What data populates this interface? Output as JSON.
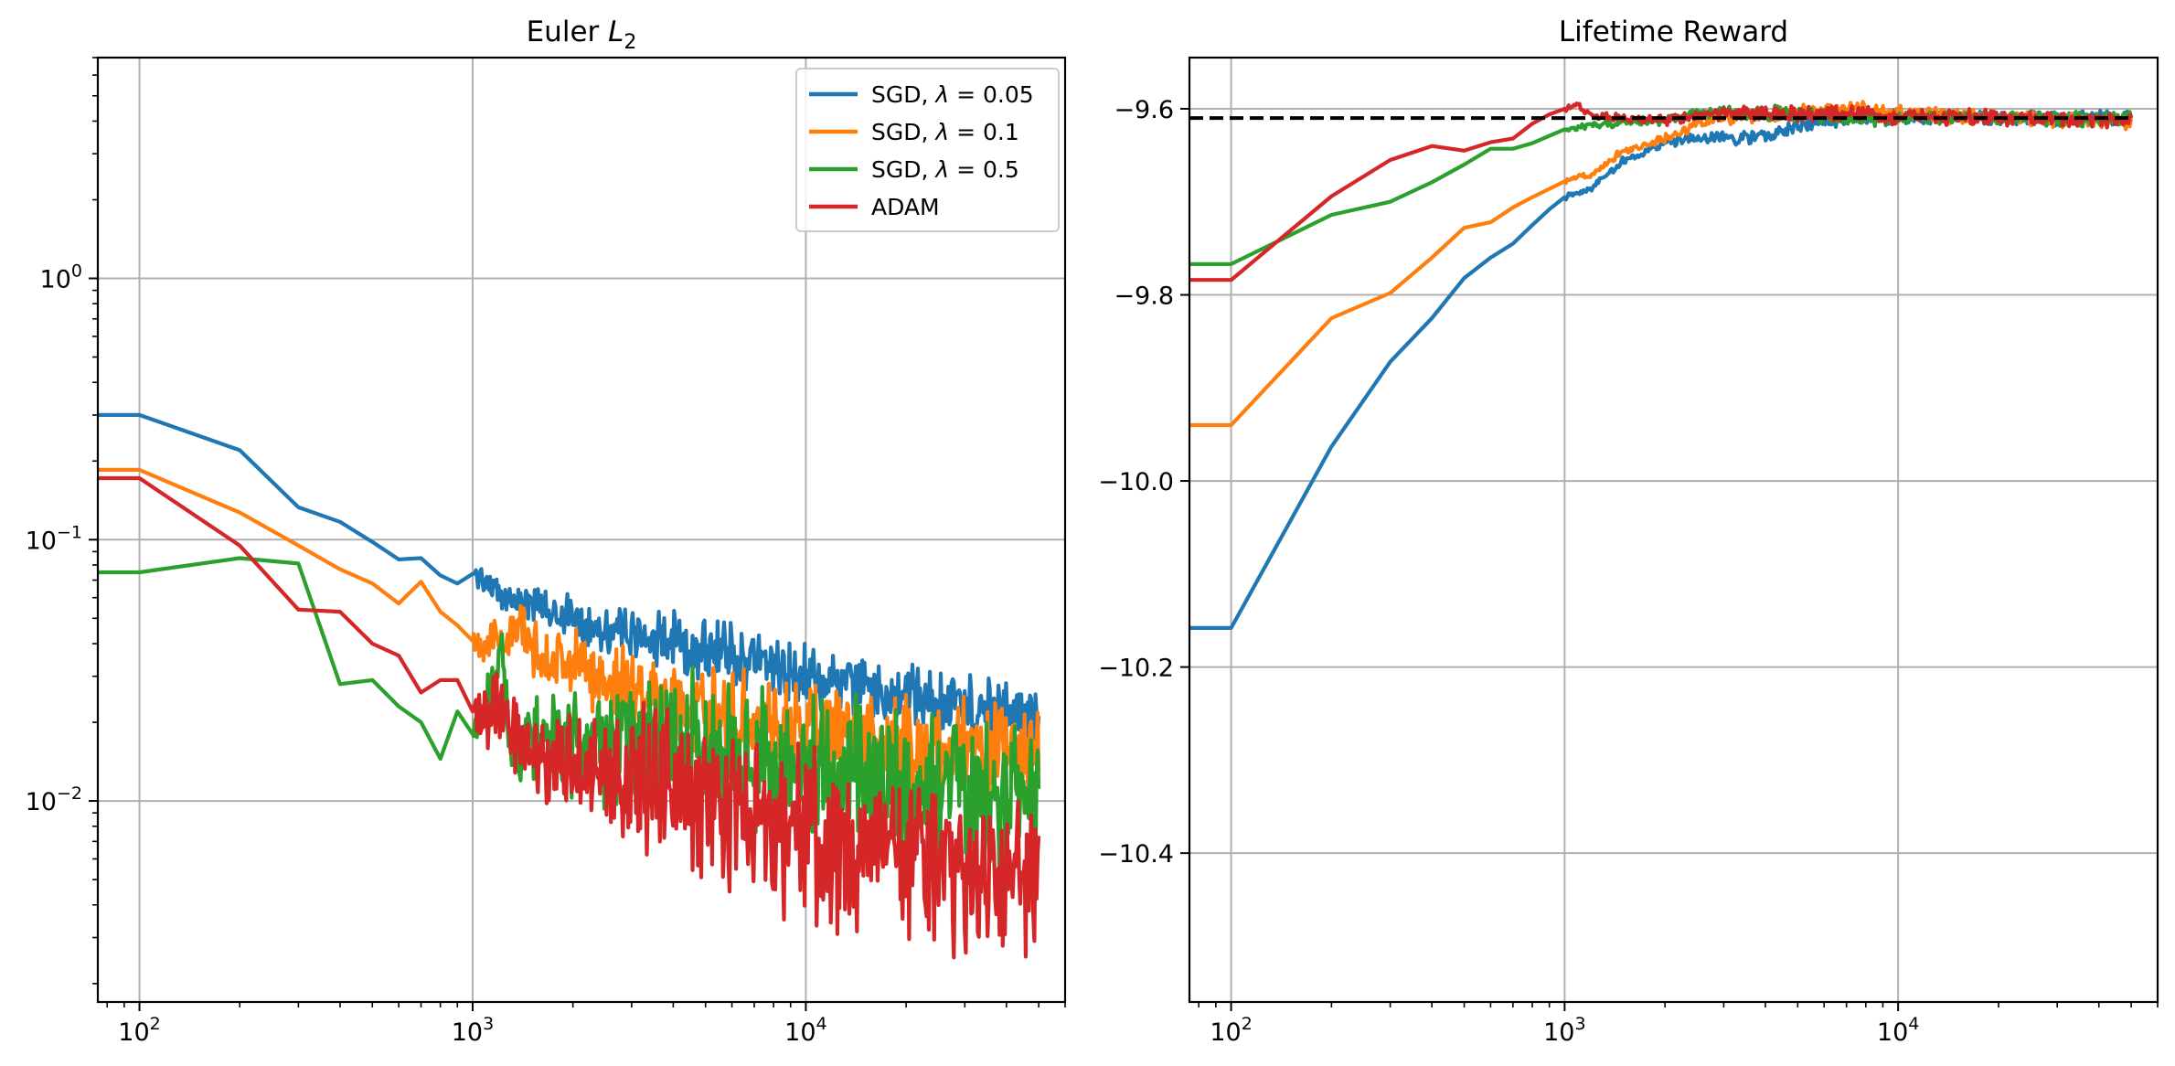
{
  "chart_data": [
    {
      "type": "line",
      "title": "Euler L2",
      "title_base": "Euler ",
      "title_symbol": "L",
      "title_subscript": "2",
      "x_scale": "log",
      "y_scale": "log",
      "xlim": [
        75,
        60000
      ],
      "ylim": [
        0.0017,
        7
      ],
      "x_ticks": [
        {
          "value": 100,
          "base": "10",
          "exp": "2"
        },
        {
          "value": 1000,
          "base": "10",
          "exp": "3"
        },
        {
          "value": 10000,
          "base": "10",
          "exp": "4"
        }
      ],
      "y_ticks": [
        {
          "value": 0.01,
          "base": "10",
          "exp": "−2"
        },
        {
          "value": 0.1,
          "base": "10",
          "exp": "−1"
        },
        {
          "value": 1,
          "base": "10",
          "exp": "0"
        }
      ],
      "grid": true,
      "legend": {
        "position": "top-right",
        "entries": [
          {
            "series": 0,
            "prefix": "SGD, ",
            "symbol": "λ",
            "suffix": " = 0.05"
          },
          {
            "series": 1,
            "prefix": "SGD, ",
            "symbol": "λ",
            "suffix": " = 0.1"
          },
          {
            "series": 2,
            "prefix": "SGD, ",
            "symbol": "λ",
            "suffix": " = 0.5"
          },
          {
            "series": 3,
            "prefix": "ADAM",
            "symbol": "",
            "suffix": ""
          }
        ]
      },
      "series": [
        {
          "name": "SGD, λ = 0.05",
          "color": "#1f77b4",
          "noise": 0.09,
          "x": [
            75,
            100,
            200,
            300,
            400,
            500,
            600,
            700,
            800,
            900,
            1000,
            1100,
            1200,
            1500,
            2000,
            3000,
            5000,
            7000,
            10000,
            15000,
            20000,
            30000,
            50000
          ],
          "y": [
            0.3,
            0.3,
            0.22,
            0.133,
            0.117,
            0.098,
            0.084,
            0.085,
            0.073,
            0.068,
            0.074,
            0.07,
            0.061,
            0.057,
            0.05,
            0.043,
            0.038,
            0.035,
            0.03,
            0.027,
            0.025,
            0.023,
            0.0205
          ]
        },
        {
          "name": "SGD, λ = 0.1",
          "color": "#ff7f0e",
          "noise": 0.14,
          "x": [
            75,
            100,
            200,
            300,
            400,
            500,
            600,
            700,
            800,
            900,
            1000,
            1200,
            1400,
            1500,
            2000,
            3000,
            5000,
            7000,
            10000,
            15000,
            20000,
            30000,
            50000
          ],
          "y": [
            0.185,
            0.185,
            0.127,
            0.095,
            0.077,
            0.068,
            0.057,
            0.069,
            0.053,
            0.047,
            0.041,
            0.041,
            0.046,
            0.038,
            0.033,
            0.027,
            0.022,
            0.02,
            0.018,
            0.017,
            0.016,
            0.0155,
            0.015
          ]
        },
        {
          "name": "SGD, λ = 0.5",
          "color": "#2ca02c",
          "noise": 0.22,
          "x": [
            75,
            100,
            200,
            300,
            400,
            500,
            600,
            700,
            800,
            900,
            1000,
            1100,
            1200,
            1300,
            1400,
            1500,
            2000,
            3000,
            5000,
            7000,
            10000,
            15000,
            20000,
            30000,
            50000
          ],
          "y": [
            0.075,
            0.075,
            0.085,
            0.081,
            0.028,
            0.029,
            0.023,
            0.02,
            0.0145,
            0.022,
            0.018,
            0.023,
            0.042,
            0.016,
            0.017,
            0.018,
            0.016,
            0.016,
            0.015,
            0.014,
            0.013,
            0.012,
            0.0115,
            0.011,
            0.0105
          ]
        },
        {
          "name": "ADAM",
          "color": "#d62728",
          "noise": 0.24,
          "x": [
            75,
            100,
            200,
            300,
            400,
            500,
            600,
            700,
            800,
            900,
            1000,
            1100,
            1200,
            1500,
            2000,
            3000,
            5000,
            7000,
            10000,
            15000,
            20000,
            30000,
            50000
          ],
          "y": [
            0.172,
            0.172,
            0.095,
            0.054,
            0.053,
            0.04,
            0.036,
            0.026,
            0.029,
            0.029,
            0.022,
            0.021,
            0.023,
            0.015,
            0.014,
            0.013,
            0.01,
            0.0085,
            0.0075,
            0.0065,
            0.006,
            0.0055,
            0.005
          ]
        }
      ]
    },
    {
      "type": "line",
      "title": "Lifetime Reward",
      "x_scale": "log",
      "y_scale": "linear",
      "xlim": [
        75,
        60000
      ],
      "ylim": [
        -10.56,
        -9.545
      ],
      "x_ticks": [
        {
          "value": 100,
          "base": "10",
          "exp": "2"
        },
        {
          "value": 1000,
          "base": "10",
          "exp": "3"
        },
        {
          "value": 10000,
          "base": "10",
          "exp": "4"
        }
      ],
      "y_ticks": [
        {
          "value": -10.4,
          "label": "−10.4"
        },
        {
          "value": -10.2,
          "label": "−10.2"
        },
        {
          "value": -10.0,
          "label": "−10.0"
        },
        {
          "value": -9.8,
          "label": "−9.8"
        },
        {
          "value": -9.6,
          "label": "−9.6"
        }
      ],
      "grid": true,
      "reference_line": {
        "y": -9.61,
        "x_start": 75,
        "x_end": 50000,
        "color": "#000000",
        "style": "dashed"
      },
      "series": [
        {
          "name": "SGD, λ = 0.05",
          "color": "#1f77b4",
          "noise": 0.006,
          "x": [
            75,
            100,
            200,
            300,
            400,
            500,
            600,
            700,
            800,
            900,
            1000,
            1200,
            1500,
            2000,
            2500,
            3000,
            4000,
            5000,
            7000,
            10000,
            20000,
            50000
          ],
          "y": [
            -10.158,
            -10.158,
            -9.963,
            -9.872,
            -9.825,
            -9.782,
            -9.76,
            -9.745,
            -9.725,
            -9.708,
            -9.695,
            -9.685,
            -9.656,
            -9.636,
            -9.632,
            -9.631,
            -9.63,
            -9.62,
            -9.61,
            -9.61,
            -9.61,
            -9.61
          ]
        },
        {
          "name": "SGD, λ = 0.1",
          "color": "#ff7f0e",
          "noise": 0.006,
          "x": [
            75,
            100,
            200,
            300,
            400,
            500,
            600,
            700,
            800,
            1000,
            1200,
            1500,
            2000,
            2500,
            3000,
            5000,
            7000,
            10000,
            20000,
            50000
          ],
          "y": [
            -9.94,
            -9.94,
            -9.825,
            -9.798,
            -9.76,
            -9.728,
            -9.722,
            -9.706,
            -9.695,
            -9.678,
            -9.67,
            -9.645,
            -9.633,
            -9.615,
            -9.61,
            -9.605,
            -9.6,
            -9.605,
            -9.61,
            -9.615
          ]
        },
        {
          "name": "SGD, λ = 0.5",
          "color": "#2ca02c",
          "noise": 0.006,
          "x": [
            75,
            100,
            200,
            300,
            400,
            500,
            600,
            700,
            800,
            1000,
            1200,
            1500,
            2000,
            2500,
            3000,
            5000,
            7000,
            10000,
            20000,
            50000
          ],
          "y": [
            -9.767,
            -9.767,
            -9.714,
            -9.7,
            -9.679,
            -9.66,
            -9.643,
            -9.643,
            -9.637,
            -9.622,
            -9.618,
            -9.615,
            -9.613,
            -9.605,
            -9.603,
            -9.607,
            -9.61,
            -9.61,
            -9.61,
            -9.61
          ]
        },
        {
          "name": "ADAM",
          "color": "#d62728",
          "noise": 0.006,
          "x": [
            75,
            100,
            200,
            300,
            400,
            500,
            600,
            700,
            800,
            900,
            1000,
            1100,
            1200,
            1500,
            2000,
            3000,
            5000,
            7000,
            10000,
            20000,
            50000
          ],
          "y": [
            -9.784,
            -9.784,
            -9.694,
            -9.655,
            -9.64,
            -9.645,
            -9.636,
            -9.632,
            -9.616,
            -9.606,
            -9.6,
            -9.596,
            -9.607,
            -9.61,
            -9.612,
            -9.605,
            -9.605,
            -9.605,
            -9.608,
            -9.61,
            -9.612
          ]
        }
      ]
    }
  ]
}
